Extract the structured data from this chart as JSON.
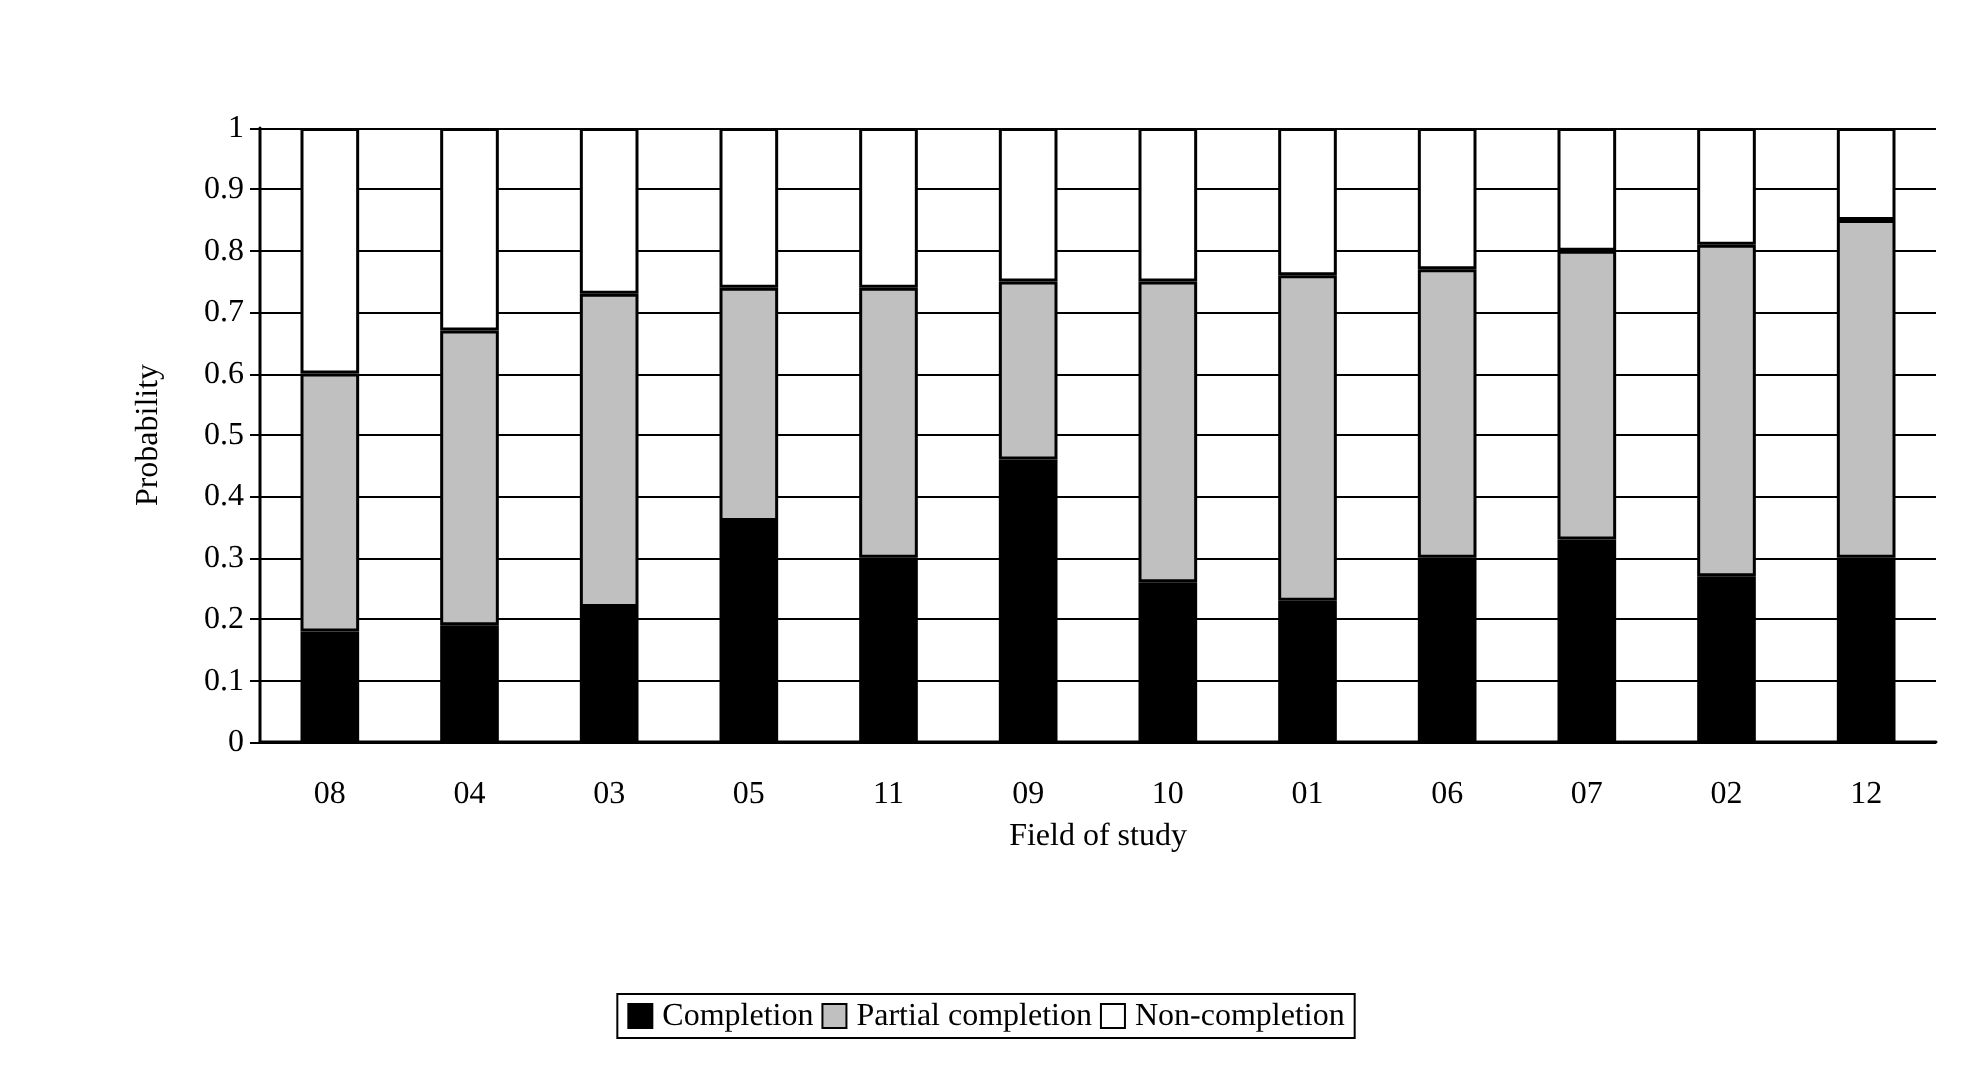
{
  "chart_data": {
    "type": "bar",
    "stacked": true,
    "xlabel": "Field of study",
    "ylabel": "Probability",
    "categories": [
      "08",
      "04",
      "03",
      "05",
      "11",
      "09",
      "10",
      "01",
      "06",
      "07",
      "02",
      "12"
    ],
    "series": [
      {
        "name": "Completion",
        "color": "#000000",
        "values": [
          0.18,
          0.19,
          0.22,
          0.36,
          0.3,
          0.46,
          0.26,
          0.23,
          0.3,
          0.33,
          0.27,
          0.3
        ]
      },
      {
        "name": "Partial completion",
        "color": "#c0c0c0",
        "values": [
          0.42,
          0.48,
          0.51,
          0.38,
          0.44,
          0.29,
          0.49,
          0.53,
          0.47,
          0.47,
          0.54,
          0.55
        ]
      },
      {
        "name": "Non-completion",
        "color": "#ffffff",
        "values": [
          0.4,
          0.33,
          0.27,
          0.26,
          0.26,
          0.25,
          0.25,
          0.24,
          0.23,
          0.2,
          0.19,
          0.15
        ]
      }
    ],
    "ylim": [
      0,
      1
    ],
    "yticks": [
      0,
      0.1,
      0.2,
      0.3,
      0.4,
      0.5,
      0.6,
      0.7,
      0.8,
      0.9,
      1
    ],
    "grid": "y",
    "legend": "bottom"
  }
}
